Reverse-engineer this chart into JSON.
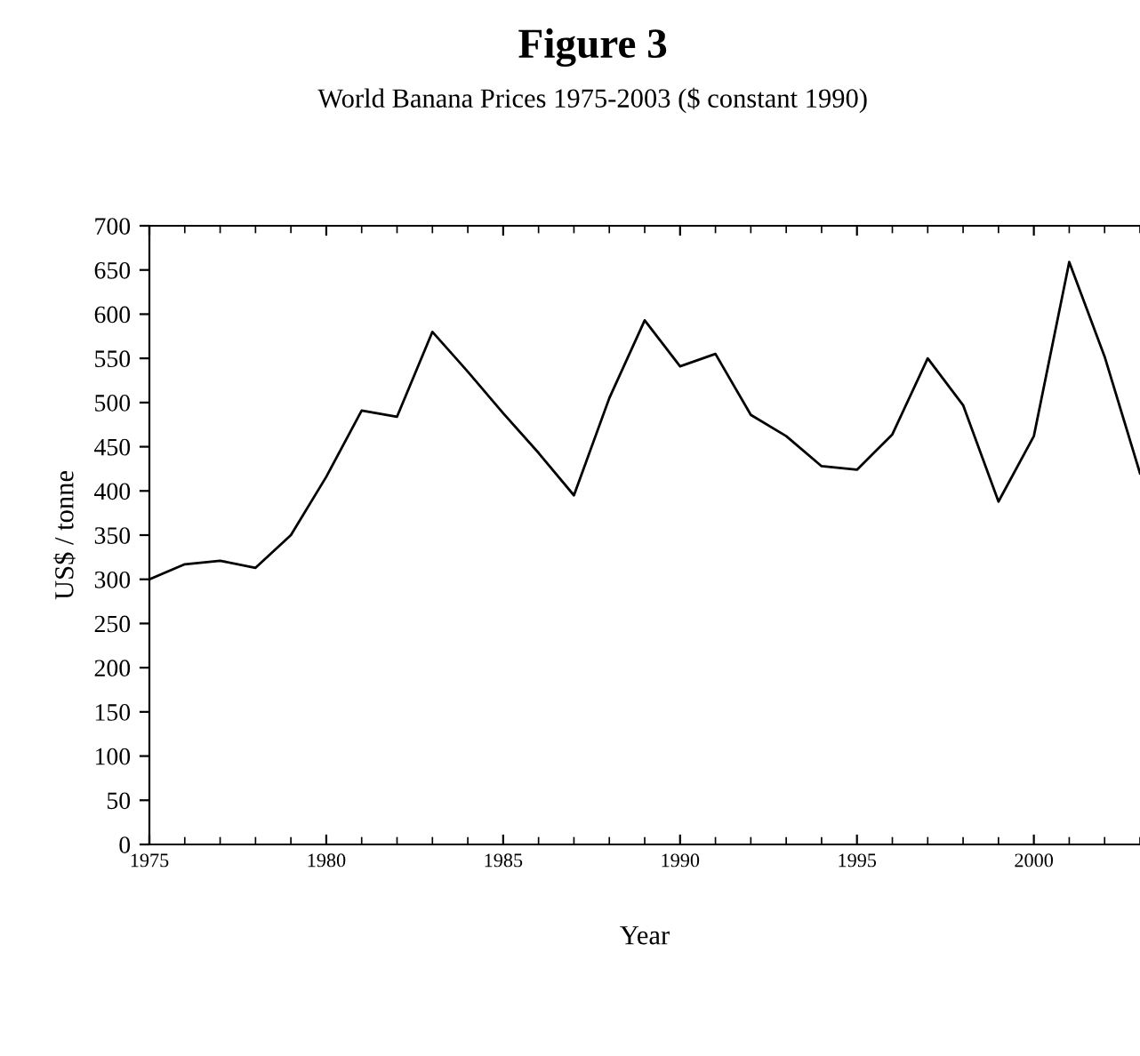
{
  "chart_data": {
    "type": "line",
    "title": "Figure 3",
    "subtitle": "World Banana Prices 1975-2003 ($ constant 1990)",
    "xlabel": "Year",
    "ylabel": "US$ / tonne",
    "x": [
      1975,
      1976,
      1977,
      1978,
      1979,
      1980,
      1981,
      1982,
      1983,
      1984,
      1985,
      1986,
      1987,
      1988,
      1989,
      1990,
      1991,
      1992,
      1993,
      1994,
      1995,
      1996,
      1997,
      1998,
      1999,
      2000,
      2001,
      2002,
      2003
    ],
    "series": [
      {
        "color": "#000000",
        "values": [
          300,
          317,
          321,
          313,
          350,
          416,
          491,
          484,
          580,
          535,
          488,
          443,
          395,
          505,
          593,
          541,
          555,
          486,
          462,
          428,
          424,
          464,
          550,
          497,
          388,
          462,
          659,
          552,
          420
        ]
      }
    ],
    "xlim": [
      1975,
      2003
    ],
    "xticks": [
      1975,
      1980,
      1985,
      1990,
      1995,
      2000
    ],
    "ylim": [
      0,
      700
    ],
    "yticks": [
      0,
      50,
      100,
      150,
      200,
      250,
      300,
      350,
      400,
      450,
      500,
      550,
      600,
      650,
      700
    ],
    "grid": false,
    "legend": false,
    "marker": "none",
    "line_style": "solid"
  }
}
